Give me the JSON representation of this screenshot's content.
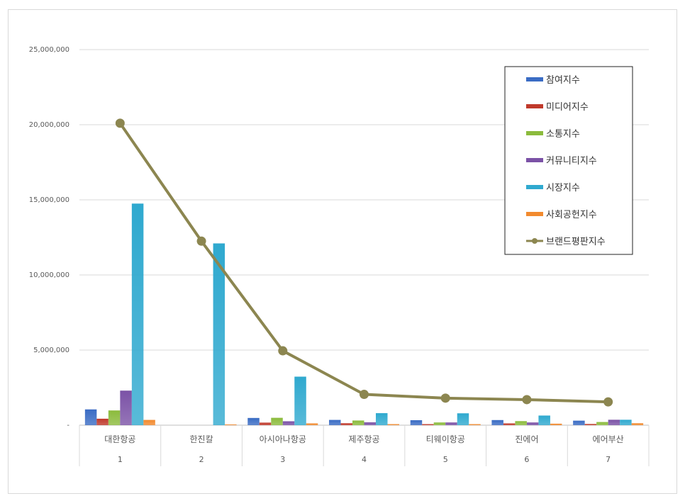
{
  "chart_data": {
    "type": "bar",
    "categories": [
      "대한항공",
      "한진칼",
      "아시아나항공",
      "제주항공",
      "티웨이항공",
      "진에어",
      "에어부산"
    ],
    "category_index": [
      "1",
      "2",
      "3",
      "4",
      "5",
      "6",
      "7"
    ],
    "ylim": [
      0,
      25000000
    ],
    "yticks": [
      0,
      5000000,
      10000000,
      15000000,
      20000000,
      25000000
    ],
    "ytick_labels": [
      "-",
      "5,000,000",
      "10,000,000",
      "15,000,000",
      "20,000,000",
      "25,000,000"
    ],
    "grid": true,
    "legend_position": "top-right",
    "series": [
      {
        "name": "참여지수",
        "type": "bar",
        "color": "#3a6cc4",
        "values": [
          1050000,
          0,
          480000,
          350000,
          330000,
          340000,
          300000
        ]
      },
      {
        "name": "미디어지수",
        "type": "bar",
        "color": "#c0392b",
        "values": [
          430000,
          0,
          170000,
          130000,
          70000,
          120000,
          80000
        ]
      },
      {
        "name": "소통지수",
        "type": "bar",
        "color": "#8bbb3c",
        "values": [
          980000,
          0,
          490000,
          310000,
          180000,
          270000,
          210000
        ]
      },
      {
        "name": "커뮤니티지수",
        "type": "bar",
        "color": "#7b52a6",
        "values": [
          2300000,
          0,
          260000,
          190000,
          180000,
          180000,
          360000
        ]
      },
      {
        "name": "시장지수",
        "type": "bar",
        "color": "#2fa9cf",
        "values": [
          14750000,
          12100000,
          3230000,
          800000,
          790000,
          640000,
          360000
        ]
      },
      {
        "name": "사회공헌지수",
        "type": "bar",
        "color": "#f28a2e",
        "values": [
          350000,
          50000,
          120000,
          70000,
          70000,
          100000,
          130000
        ]
      },
      {
        "name": "브랜드평판지수",
        "type": "line",
        "color": "#8c8650",
        "values": [
          20100000,
          12250000,
          4950000,
          2050000,
          1800000,
          1700000,
          1550000
        ]
      }
    ]
  }
}
